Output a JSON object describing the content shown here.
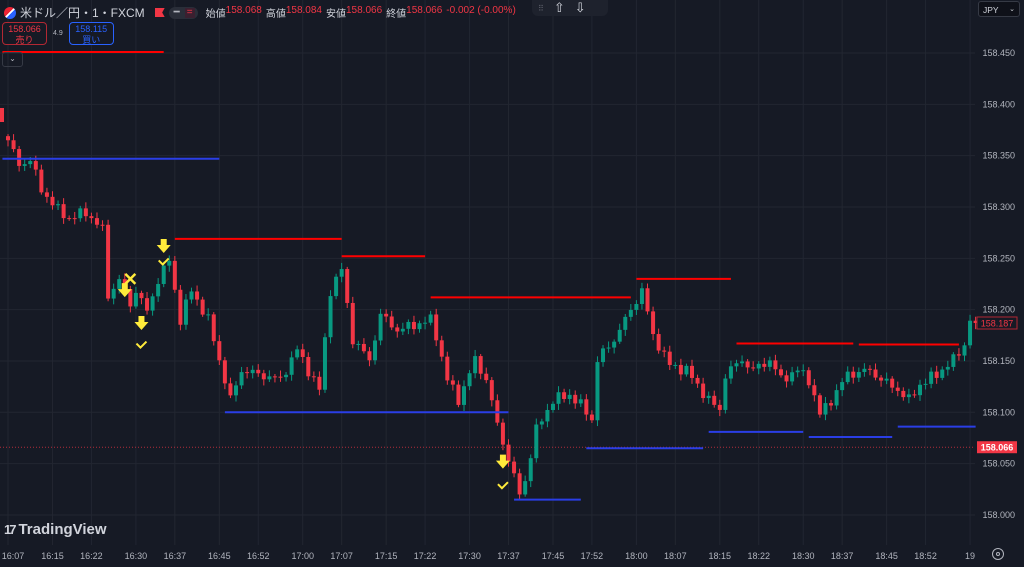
{
  "header": {
    "symbol": "米ドル／円・1・FXCM",
    "ohlc": [
      {
        "label": "始値",
        "value": "158.068"
      },
      {
        "label": "高値",
        "value": "158.084"
      },
      {
        "label": "安値",
        "value": "158.066"
      },
      {
        "label": "終値",
        "value": "158.066"
      }
    ],
    "change": "-0.002 (-0.00%)",
    "pill_icons": [
      "minus-icon",
      "equals-icon"
    ]
  },
  "trade": {
    "sell_price": "158.066",
    "sell_label": "売り",
    "spread": "4.9",
    "buy_price": "158.115",
    "buy_label": "買い"
  },
  "toolbar": {
    "up_icon": "arrow-up-icon",
    "down_icon": "arrow-down-icon"
  },
  "currency": "JPY",
  "logo": "TradingView",
  "colors": {
    "up": "#089981",
    "down": "#f23645",
    "resistance": "#ff0000",
    "support": "#2a3ee6",
    "signal": "#ffeb3b"
  },
  "chart_data": {
    "type": "candlestick",
    "interval": "1 minute",
    "ylim": [
      157.96,
      158.49
    ],
    "y_ticks": [
      "158.450",
      "158.400",
      "158.350",
      "158.300",
      "158.250",
      "158.200",
      "158.150",
      "158.100",
      "158.050",
      "158.000"
    ],
    "x_ticks": [
      "16:07",
      "16:15",
      "16:22",
      "16:30",
      "16:37",
      "16:45",
      "16:52",
      "17:00",
      "17:07",
      "17:15",
      "17:22",
      "17:30",
      "17:37",
      "17:45",
      "17:52",
      "18:00",
      "18:07",
      "18:15",
      "18:22",
      "18:30",
      "18:37",
      "18:45",
      "18:52",
      "19"
    ],
    "x_tick_times": [
      "16:07",
      "16:15",
      "16:22",
      "16:30",
      "16:37",
      "16:45",
      "16:52",
      "17:00",
      "17:07",
      "17:15",
      "17:22",
      "17:30",
      "17:37",
      "17:45",
      "17:52",
      "18:00",
      "18:07",
      "18:15",
      "18:22",
      "18:30",
      "18:37",
      "18:45",
      "18:52",
      "19:00"
    ],
    "close_path": [
      [
        "16:07",
        158.365
      ],
      [
        "16:09",
        158.341
      ],
      [
        "16:11",
        158.346
      ],
      [
        "16:13",
        158.317
      ],
      [
        "16:16",
        158.297
      ],
      [
        "16:18",
        158.289
      ],
      [
        "16:21",
        158.295
      ],
      [
        "16:24",
        158.278
      ],
      [
        "16:25",
        158.214
      ],
      [
        "16:27",
        158.229
      ],
      [
        "16:29",
        158.205
      ],
      [
        "16:30",
        158.219
      ],
      [
        "16:32",
        158.198
      ],
      [
        "16:34",
        158.229
      ],
      [
        "16:36",
        158.248
      ],
      [
        "16:37",
        158.219
      ],
      [
        "16:38",
        158.19
      ],
      [
        "16:40",
        158.219
      ],
      [
        "16:43",
        158.19
      ],
      [
        "16:45",
        158.151
      ],
      [
        "16:47",
        158.112
      ],
      [
        "16:49",
        158.141
      ],
      [
        "16:52",
        158.137
      ],
      [
        "16:56",
        158.132
      ],
      [
        "16:59",
        158.161
      ],
      [
        "17:01",
        158.141
      ],
      [
        "17:03",
        158.122
      ],
      [
        "17:05",
        158.219
      ],
      [
        "17:07",
        158.239
      ],
      [
        "17:09",
        158.171
      ],
      [
        "17:12",
        158.151
      ],
      [
        "17:14",
        158.195
      ],
      [
        "17:17",
        158.18
      ],
      [
        "17:23",
        158.19
      ],
      [
        "17:24",
        158.175
      ],
      [
        "17:26",
        158.132
      ],
      [
        "17:28",
        158.112
      ],
      [
        "17:31",
        158.151
      ],
      [
        "17:33",
        158.132
      ],
      [
        "17:35",
        158.088
      ],
      [
        "17:37",
        158.054
      ],
      [
        "17:39",
        158.02
      ],
      [
        "17:40",
        158.034
      ],
      [
        "17:42",
        158.083
      ],
      [
        "17:45",
        158.112
      ],
      [
        "17:48",
        158.117
      ],
      [
        "17:50",
        158.107
      ],
      [
        "17:52",
        158.093
      ],
      [
        "17:53",
        158.151
      ],
      [
        "17:56",
        158.171
      ],
      [
        "17:58",
        158.19
      ],
      [
        "18:01",
        158.219
      ],
      [
        "18:03",
        158.175
      ],
      [
        "18:06",
        158.146
      ],
      [
        "18:09",
        158.141
      ],
      [
        "18:13",
        158.112
      ],
      [
        "18:15",
        158.102
      ],
      [
        "18:16",
        158.137
      ],
      [
        "18:19",
        158.151
      ],
      [
        "18:21",
        158.141
      ],
      [
        "18:24",
        158.151
      ],
      [
        "18:26",
        158.132
      ],
      [
        "18:29",
        158.141
      ],
      [
        "18:31",
        158.132
      ],
      [
        "18:33",
        158.098
      ],
      [
        "18:35",
        158.112
      ],
      [
        "18:38",
        158.137
      ],
      [
        "18:42",
        158.141
      ],
      [
        "18:44",
        158.132
      ],
      [
        "18:47",
        158.122
      ],
      [
        "18:49",
        158.112
      ],
      [
        "18:51",
        158.127
      ],
      [
        "18:54",
        158.137
      ],
      [
        "18:57",
        158.151
      ],
      [
        "18:59",
        158.166
      ],
      [
        "19:00",
        158.19
      ],
      [
        "19:01",
        158.187
      ]
    ],
    "levels": [
      {
        "kind": "resistance",
        "price": 158.451,
        "from": "16:06",
        "to": "16:35"
      },
      {
        "kind": "support",
        "price": 158.347,
        "from": "16:06",
        "to": "16:45"
      },
      {
        "kind": "resistance",
        "price": 158.269,
        "from": "16:37",
        "to": "17:07"
      },
      {
        "kind": "resistance",
        "price": 158.252,
        "from": "17:07",
        "to": "17:22"
      },
      {
        "kind": "support",
        "price": 158.1,
        "from": "16:46",
        "to": "17:37"
      },
      {
        "kind": "resistance",
        "price": 158.212,
        "from": "17:23",
        "to": "17:59"
      },
      {
        "kind": "resistance",
        "price": 158.23,
        "from": "18:00",
        "to": "18:17"
      },
      {
        "kind": "support",
        "price": 158.015,
        "from": "17:38",
        "to": "17:50"
      },
      {
        "kind": "support",
        "price": 158.065,
        "from": "17:51",
        "to": "18:12"
      },
      {
        "kind": "resistance",
        "price": 158.167,
        "from": "18:18",
        "to": "18:39"
      },
      {
        "kind": "resistance",
        "price": 158.166,
        "from": "18:40",
        "to": "18:58"
      },
      {
        "kind": "support",
        "price": 158.081,
        "from": "18:13",
        "to": "18:30"
      },
      {
        "kind": "support",
        "price": 158.076,
        "from": "18:31",
        "to": "18:46"
      },
      {
        "kind": "support",
        "price": 158.086,
        "from": "18:47",
        "to": "19:01"
      }
    ],
    "signals": [
      {
        "type": "sell-arrow",
        "time": "16:28",
        "price": 158.218
      },
      {
        "type": "exit-x",
        "time": "16:29",
        "price": 158.23
      },
      {
        "type": "sell-arrow",
        "time": "16:31",
        "price": 158.186
      },
      {
        "type": "check",
        "time": "16:31",
        "price": 158.166
      },
      {
        "type": "sell-arrow",
        "time": "16:35",
        "price": 158.261
      },
      {
        "type": "check",
        "time": "16:35",
        "price": 158.247
      },
      {
        "type": "sell-arrow",
        "time": "17:36",
        "price": 158.051
      },
      {
        "type": "check",
        "time": "17:36",
        "price": 158.029
      }
    ],
    "last_price": "158.187",
    "current_price": "158.066"
  }
}
